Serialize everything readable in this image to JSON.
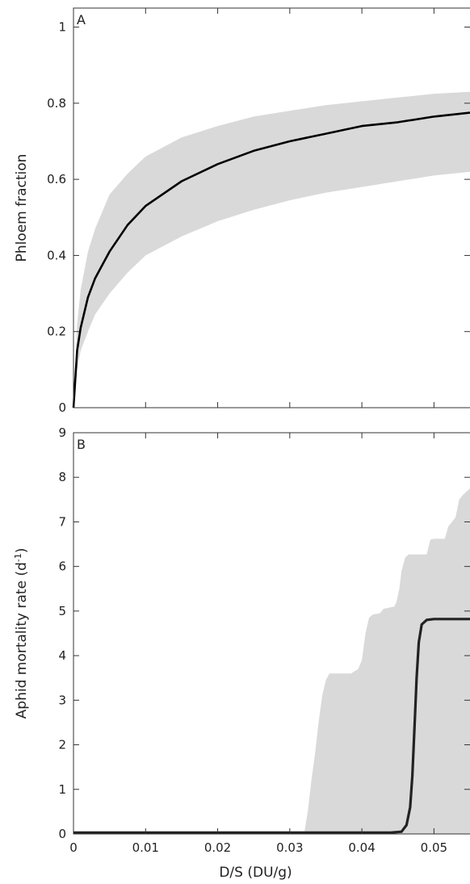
{
  "chart_data": [
    {
      "type": "line",
      "panel_label": "A",
      "ylabel": "Phloem fraction",
      "xlabel": "",
      "xlim": [
        0,
        0.055
      ],
      "ylim": [
        0,
        1.05
      ],
      "x_ticks": [
        "0",
        "0.01",
        "0.02",
        "0.03",
        "0.04",
        "0.05"
      ],
      "y_ticks": [
        "0",
        "0.2",
        "0.4",
        "0.6",
        "0.8",
        "1"
      ],
      "grid": false,
      "band_color": "#d9d9d9",
      "line_color": "#000000",
      "series": [
        {
          "role": "mean",
          "x": [
            0,
            0.0005,
            0.001,
            0.002,
            0.003,
            0.005,
            0.0075,
            0.01,
            0.015,
            0.02,
            0.025,
            0.03,
            0.035,
            0.04,
            0.045,
            0.05,
            0.055
          ],
          "y": [
            0,
            0.15,
            0.21,
            0.29,
            0.34,
            0.41,
            0.48,
            0.53,
            0.595,
            0.64,
            0.675,
            0.7,
            0.72,
            0.74,
            0.75,
            0.765,
            0.775
          ]
        },
        {
          "role": "band",
          "x": [
            0,
            0.0005,
            0.001,
            0.002,
            0.003,
            0.005,
            0.0075,
            0.01,
            0.015,
            0.02,
            0.025,
            0.03,
            0.035,
            0.04,
            0.045,
            0.05,
            0.055
          ],
          "lower": [
            0,
            0.1,
            0.15,
            0.2,
            0.245,
            0.3,
            0.355,
            0.4,
            0.45,
            0.49,
            0.52,
            0.545,
            0.565,
            0.58,
            0.595,
            0.61,
            0.62
          ],
          "upper": [
            0,
            0.22,
            0.31,
            0.41,
            0.47,
            0.56,
            0.615,
            0.66,
            0.71,
            0.74,
            0.765,
            0.78,
            0.795,
            0.805,
            0.815,
            0.825,
            0.83
          ]
        }
      ]
    },
    {
      "type": "line",
      "panel_label": "B",
      "ylabel": "Aphid mortality rate (d",
      "ylabel_sup": "-1",
      "ylabel_end": ")",
      "xlabel": "D/S (DU/g)",
      "xlim": [
        0,
        0.055
      ],
      "ylim": [
        0,
        9
      ],
      "x_ticks": [
        "0",
        "0.01",
        "0.02",
        "0.03",
        "0.04",
        "0.05"
      ],
      "y_ticks": [
        "0",
        "1",
        "2",
        "3",
        "4",
        "5",
        "6",
        "7",
        "8",
        "9"
      ],
      "grid": false,
      "band_color": "#d9d9d9",
      "line_color": "#222222",
      "series": [
        {
          "role": "mean",
          "x": [
            0,
            0.044,
            0.0455,
            0.0462,
            0.0467,
            0.047,
            0.0473,
            0.0476,
            0.0479,
            0.0483,
            0.049,
            0.05,
            0.055
          ],
          "y": [
            0.03,
            0.03,
            0.05,
            0.2,
            0.6,
            1.3,
            2.4,
            3.5,
            4.3,
            4.7,
            4.8,
            4.82,
            4.82
          ]
        },
        {
          "role": "band_upper",
          "x": [
            0,
            0.032,
            0.0325,
            0.033,
            0.0335,
            0.034,
            0.0345,
            0.035,
            0.0355,
            0.0385,
            0.039,
            0.0395,
            0.04,
            0.0405,
            0.041,
            0.0415,
            0.0425,
            0.043,
            0.0445,
            0.0448,
            0.0452,
            0.0455,
            0.046,
            0.0465,
            0.047,
            0.0475,
            0.048,
            0.049,
            0.0495,
            0.05,
            0.051,
            0.0515,
            0.052,
            0.053,
            0.0535,
            0.054,
            0.055
          ],
          "y": [
            0.02,
            0.02,
            0.5,
            1.2,
            1.8,
            2.5,
            3.1,
            3.45,
            3.6,
            3.6,
            3.65,
            3.7,
            3.9,
            4.5,
            4.85,
            4.92,
            4.95,
            5.05,
            5.1,
            5.2,
            5.5,
            5.9,
            6.2,
            6.27,
            6.27,
            6.27,
            6.27,
            6.27,
            6.6,
            6.62,
            6.62,
            6.62,
            6.9,
            7.1,
            7.5,
            7.6,
            7.75
          ]
        }
      ]
    }
  ]
}
